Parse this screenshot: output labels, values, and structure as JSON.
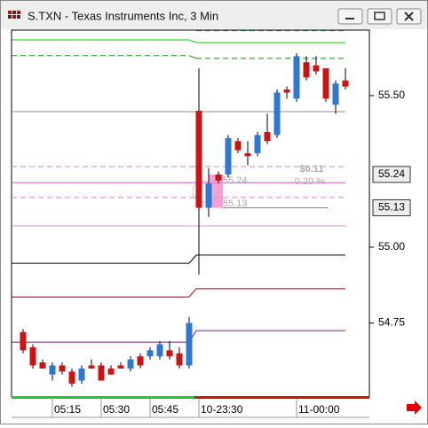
{
  "window": {
    "title": "S.TXN - Texas Instruments Inc, 3 Min"
  },
  "chart_data": {
    "type": "candlestick",
    "categories": [
      null,
      null,
      null,
      "05:15",
      null,
      null,
      null,
      null,
      "05:30",
      null,
      null,
      null,
      null,
      "05:45",
      null,
      null,
      null,
      null,
      "10-23:30",
      null,
      null,
      null,
      null,
      null,
      null,
      null,
      null,
      null,
      "11-00:00",
      null,
      null,
      null,
      null,
      null
    ],
    "open": [
      54.72,
      54.67,
      54.62,
      54.58,
      54.61,
      54.59,
      54.56,
      54.61,
      54.61,
      54.6,
      54.61,
      54.6,
      54.64,
      54.64,
      54.64,
      54.66,
      54.65,
      54.61,
      55.45,
      55.13,
      55.24,
      55.24,
      55.35,
      55.31,
      55.31,
      55.38,
      55.37,
      55.52,
      55.49,
      55.61,
      55.6,
      55.59,
      55.47,
      55.55
    ],
    "high": [
      54.73,
      54.68,
      54.63,
      54.62,
      54.62,
      54.6,
      54.61,
      54.63,
      54.62,
      54.61,
      54.62,
      54.64,
      54.65,
      54.67,
      54.69,
      54.69,
      54.67,
      54.77,
      55.59,
      55.26,
      55.25,
      55.37,
      55.36,
      55.35,
      55.38,
      55.44,
      55.52,
      55.53,
      55.64,
      55.63,
      55.63,
      55.59,
      55.55,
      55.59
    ],
    "low": [
      54.65,
      54.6,
      54.6,
      54.56,
      54.58,
      54.54,
      54.55,
      54.6,
      54.56,
      54.58,
      54.6,
      54.59,
      54.6,
      54.63,
      54.63,
      54.63,
      54.6,
      54.6,
      54.91,
      55.1,
      55.21,
      55.23,
      55.31,
      55.27,
      55.3,
      55.34,
      55.36,
      55.49,
      55.48,
      55.55,
      55.57,
      55.48,
      55.44,
      55.52
    ],
    "close": [
      54.66,
      54.61,
      54.6,
      54.61,
      54.59,
      54.55,
      54.6,
      54.6,
      54.56,
      54.58,
      54.6,
      54.63,
      54.61,
      54.66,
      54.68,
      54.64,
      54.61,
      54.75,
      55.13,
      55.21,
      55.22,
      55.36,
      55.32,
      55.3,
      55.37,
      55.35,
      55.51,
      55.51,
      55.63,
      55.56,
      55.58,
      55.49,
      55.54,
      55.53
    ],
    "up_color": "#2f77d0",
    "down_color": "#c81414",
    "overlays": [
      {
        "color": "#1e6e1e",
        "dash": true,
        "values": [
          null,
          55.714
        ]
      },
      {
        "color": "#00d000",
        "dash": false,
        "values": [
          55.684,
          55.675
        ]
      },
      {
        "color": "#00a000",
        "dash": true,
        "values": [
          55.632,
          55.623
        ]
      },
      {
        "color": "#8c8c8c",
        "dash": false,
        "values": [
          55.447,
          55.447
        ]
      },
      {
        "color": "#e07ad0",
        "dash": true,
        "values": [
          55.266,
          55.266
        ]
      },
      {
        "color": "#d84cd0",
        "dash": false,
        "values": [
          55.213,
          55.213
        ]
      },
      {
        "color": "#e07ad0",
        "dash": true,
        "values": [
          55.164,
          55.164
        ]
      },
      {
        "color": "#ea8ae0",
        "dash": false,
        "values": [
          55.07,
          55.07
        ]
      },
      {
        "color": "#000000",
        "dash": false,
        "values": [
          54.947,
          54.974
        ]
      },
      {
        "color": "#b00000",
        "dash": false,
        "values": [
          54.836,
          54.863
        ]
      },
      {
        "color": "#7a1a7a",
        "dash": false,
        "values": [
          54.687,
          54.725
        ]
      }
    ],
    "price_markers": [
      55.24,
      55.13
    ],
    "annotations": [
      "$0.11",
      "0.20 %"
    ],
    "ylim": [
      54.506,
      55.716
    ],
    "yticks": [
      54.75,
      {
        "value": 55,
        "label": "55.00"
      },
      {
        "value": 55.5,
        "label": "55.50"
      }
    ]
  }
}
